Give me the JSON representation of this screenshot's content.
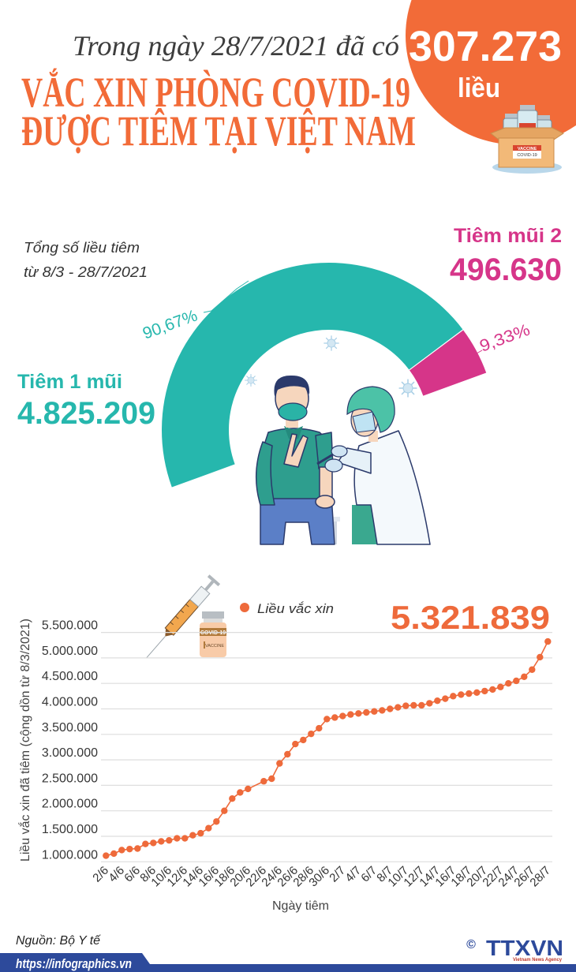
{
  "header": {
    "subtitle": "Trong ngày 28/7/2021 đã có",
    "daily_doses": "307.273",
    "daily_unit": "liều",
    "title_line1": "VẮC XIN PHÒNG COVID-19",
    "title_line2": "ĐƯỢC TIÊM TẠI VIỆT NAM",
    "box_label_top": "VACCINE",
    "box_label_bottom": "COVID-19"
  },
  "gauge": {
    "caption_line1": "Tổng số liều tiêm",
    "caption_line2": "từ 8/3 - 28/7/2021",
    "dose1": {
      "label": "Tiêm 1 mũi",
      "value": "4.825.209",
      "percent": "90,67%"
    },
    "dose2": {
      "label": "Tiêm mũi 2",
      "value": "496.630",
      "percent": "9,33%"
    }
  },
  "chart": {
    "legend_label": "Liều vắc xin",
    "latest_value": "5.321.839",
    "ylabel": "Liều vắc xin đã tiêm (cộng dồn từ 8/3/2021)",
    "xlabel": "Ngày tiêm",
    "vial_label": "COVID-19",
    "vial_sublabel": "VACCINE"
  },
  "footer": {
    "source": "Nguồn: Bộ Y tế",
    "url": "https://infographics.vn",
    "copyright_symbol": "©",
    "logo": "TTXVN",
    "agency": "Vietnam News Agency"
  },
  "colors": {
    "orange": "#f26b38",
    "teal": "#26b7ad",
    "magenta": "#d63589",
    "navy": "#2d4a9b",
    "chart_line": "#ee6a3b",
    "text_dark": "#3a3a3a"
  },
  "chart_data": [
    {
      "type": "pie",
      "title": "Tổng số liều tiêm từ 8/3 - 28/7/2021",
      "categories": [
        "Tiêm 1 mũi",
        "Tiêm mũi 2"
      ],
      "values": [
        4825209,
        496630
      ],
      "percent": [
        90.67,
        9.33
      ],
      "labels": [
        "90,67%",
        "9,33%"
      ],
      "colors": [
        "#26b7ad",
        "#d63589"
      ],
      "style": "half-donut gauge"
    },
    {
      "type": "line",
      "title": "Liều vắc xin",
      "xlabel": "Ngày tiêm",
      "ylabel": "Liều vắc xin đã tiêm (cộng dồn từ 8/3/2021)",
      "legend": [
        "Liều vắc xin"
      ],
      "legend_position": "top",
      "grid": true,
      "ylim": [
        1000000,
        5500000
      ],
      "yticks": [
        1000000,
        1500000,
        2000000,
        2500000,
        3000000,
        3500000,
        4000000,
        4500000,
        5000000,
        5500000
      ],
      "ytick_labels": [
        "1.000.000",
        "1.500.000",
        "2.000.000",
        "2.500.000",
        "3.000.000",
        "3.500.000",
        "4.000.000",
        "4.500.000",
        "5.000.000",
        "5.500.000"
      ],
      "x": [
        "2/6",
        "3/6",
        "4/6",
        "5/6",
        "6/6",
        "7/6",
        "8/6",
        "9/6",
        "10/6",
        "11/6",
        "12/6",
        "13/6",
        "14/6",
        "15/6",
        "16/6",
        "17/6",
        "18/6",
        "19/6",
        "20/6",
        "21/6",
        "22/6",
        "23/6",
        "24/6",
        "25/6",
        "26/6",
        "27/6",
        "28/6",
        "29/6",
        "30/6",
        "1/7",
        "2/7",
        "3/7",
        "4/7",
        "5/7",
        "6/7",
        "7/7",
        "8/7",
        "9/7",
        "10/7",
        "11/7",
        "12/7",
        "13/7",
        "14/7",
        "15/7",
        "16/7",
        "17/7",
        "18/7",
        "19/7",
        "20/7",
        "21/7",
        "22/7",
        "23/7",
        "24/7",
        "25/7",
        "26/7",
        "27/7",
        "28/7"
      ],
      "xtick_labels": [
        "2/6",
        "4/6",
        "6/6",
        "8/6",
        "10/6",
        "12/6",
        "14/6",
        "16/6",
        "18/6",
        "20/6",
        "22/6",
        "24/6",
        "26/6",
        "28/6",
        "30/6",
        "2/7",
        "4/7",
        "6/7",
        "8/7",
        "10/7",
        "12/7",
        "14/7",
        "16/7",
        "18/7",
        "20/7",
        "22/7",
        "24/7",
        "26/7",
        "28/7"
      ],
      "values": [
        1120000,
        1160000,
        1230000,
        1250000,
        1260000,
        1350000,
        1370000,
        1400000,
        1420000,
        1460000,
        1460000,
        1520000,
        1560000,
        1660000,
        1790000,
        2000000,
        2240000,
        2360000,
        2430000,
        null,
        2580000,
        2630000,
        2930000,
        3110000,
        3310000,
        3390000,
        3510000,
        3620000,
        3800000,
        3830000,
        3860000,
        3890000,
        3910000,
        3930000,
        3950000,
        3970000,
        4000000,
        4030000,
        4060000,
        4070000,
        4070000,
        4110000,
        4160000,
        4200000,
        4250000,
        4280000,
        4300000,
        4320000,
        4350000,
        4380000,
        4430000,
        4500000,
        4550000,
        4630000,
        4770000,
        5014566,
        5321839
      ],
      "annotations": [
        "5.321.839"
      ]
    }
  ]
}
